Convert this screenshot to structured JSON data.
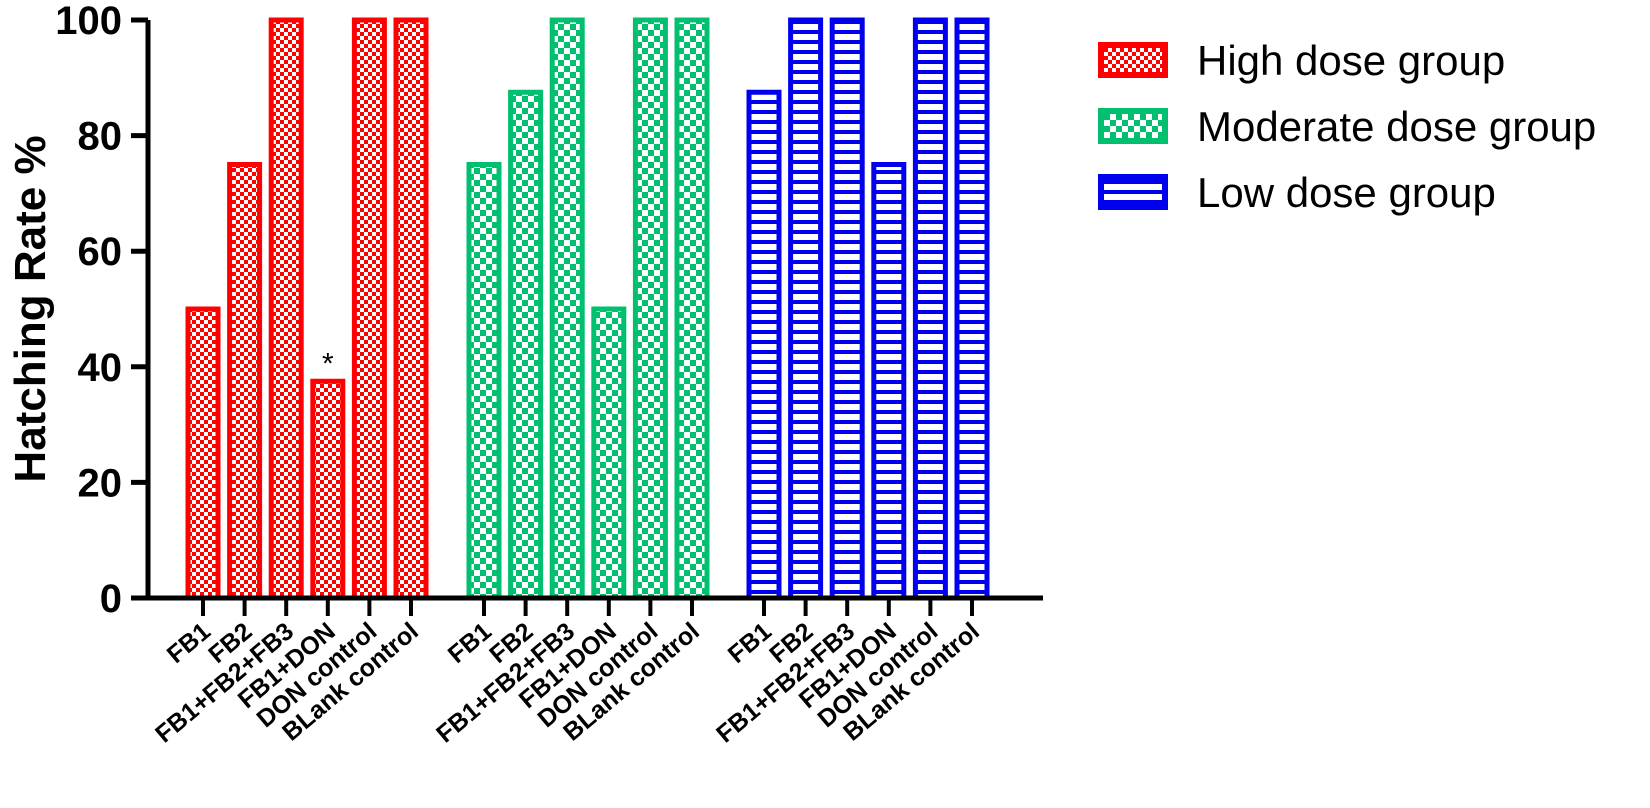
{
  "chart_data": {
    "type": "bar",
    "ylabel": "Hatching Rate %",
    "xlabel": "",
    "ylim": [
      0,
      100
    ],
    "yticks": [
      "0",
      "20",
      "40",
      "60",
      "80",
      "100"
    ],
    "categories": [
      "FB1",
      "FB2",
      "FB1+FB2+FB3",
      "FB1+DON",
      "DON control",
      "BLank control"
    ],
    "series": [
      {
        "name": "High dose group",
        "color": "#ff0000",
        "pattern": "checker-fine",
        "values": [
          50,
          75,
          100,
          37.5,
          100,
          100
        ]
      },
      {
        "name": "Moderate dose group",
        "color": "#00c070",
        "pattern": "checker-coarse",
        "values": [
          75,
          87.5,
          100,
          50,
          100,
          100
        ]
      },
      {
        "name": "Low dose group",
        "color": "#0000ee",
        "pattern": "horizontal-lines",
        "values": [
          87.5,
          100,
          100,
          75,
          100,
          100
        ]
      }
    ],
    "annotations": [
      {
        "series": 0,
        "category": 3,
        "text": "*"
      }
    ],
    "legend_position": "top-right",
    "grid": false
  }
}
